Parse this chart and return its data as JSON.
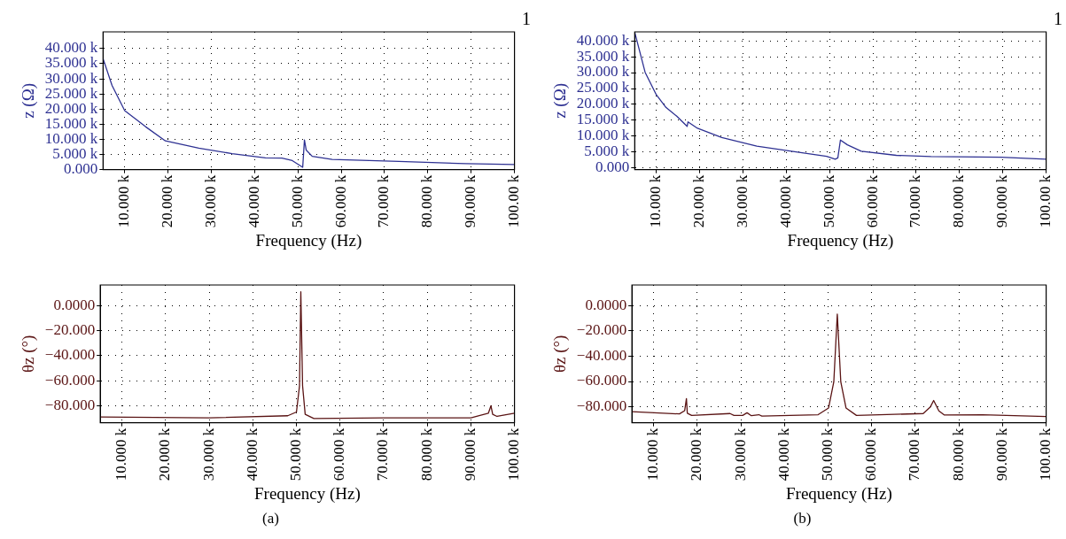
{
  "chart_data": [
    {
      "type": "line",
      "ylabel": "z (Ω)",
      "xlabel": "Frequency (Hz)",
      "annotations": [
        "1"
      ],
      "grid": true,
      "xlim": [
        5000,
        100000
      ],
      "xticks": [
        {
          "value": 10000,
          "label": "10.000 k"
        },
        {
          "value": 20000,
          "label": "20.000 k"
        },
        {
          "value": 30000,
          "label": "30.000 k"
        },
        {
          "value": 40000,
          "label": "40.000 k"
        },
        {
          "value": 50000,
          "label": "50.000 k"
        },
        {
          "value": 60000,
          "label": "60.000 k"
        },
        {
          "value": 70000,
          "label": "70.000 k"
        },
        {
          "value": 80000,
          "label": "80.000 k"
        },
        {
          "value": 90000,
          "label": "90.000 k"
        },
        {
          "value": 100000,
          "label": "100.00 k"
        }
      ],
      "ylim": [
        0,
        45500
      ],
      "yticks": [
        {
          "value": 0,
          "label": "0.000"
        },
        {
          "value": 5000,
          "label": "5.000 k"
        },
        {
          "value": 10000,
          "label": "10.000 k"
        },
        {
          "value": 15000,
          "label": "15.000 k"
        },
        {
          "value": 20000,
          "label": "20.000 k"
        },
        {
          "value": 25000,
          "label": "25.000 k"
        },
        {
          "value": 30000,
          "label": "30.000 k"
        },
        {
          "value": 35000,
          "label": "35.000 k"
        },
        {
          "value": 40000,
          "label": "40.000 k"
        }
      ],
      "x": [
        5000,
        7070,
        10000,
        14800,
        19400,
        27100,
        34800,
        42500,
        46300,
        48700,
        51100,
        51500,
        51900,
        53300,
        57900,
        73300,
        88700,
        100000
      ],
      "series": [
        {
          "color": "#2e3192",
          "values": [
            36700,
            27800,
            19500,
            14200,
            9500,
            7100,
            5300,
            3900,
            3800,
            3000,
            800,
            9800,
            6500,
            4400,
            3400,
            2700,
            2000,
            1700
          ]
        }
      ]
    },
    {
      "type": "line",
      "ylabel": "θz (°)",
      "xlabel": "Frequency (Hz)",
      "annotations": [
        "(a)"
      ],
      "grid": true,
      "xlim": [
        5000,
        100000
      ],
      "xticks": [
        {
          "value": 10000,
          "label": "10.000 k"
        },
        {
          "value": 20000,
          "label": "20.000 k"
        },
        {
          "value": 30000,
          "label": "30.000 k"
        },
        {
          "value": 40000,
          "label": "40.000 k"
        },
        {
          "value": 50000,
          "label": "50.000 k"
        },
        {
          "value": 60000,
          "label": "60.000 k"
        },
        {
          "value": 70000,
          "label": "70.000 k"
        },
        {
          "value": 80000,
          "label": "80.000 k"
        },
        {
          "value": 90000,
          "label": "90.000 k"
        },
        {
          "value": 100000,
          "label": "100.00 k"
        }
      ],
      "ylim": [
        -93.6,
        16.4
      ],
      "yticks": [
        {
          "value": -80,
          "label": "−80.000"
        },
        {
          "value": -60,
          "label": "−60.000"
        },
        {
          "value": -40,
          "label": "−40.000"
        },
        {
          "value": -20,
          "label": "−20.000"
        },
        {
          "value": 0,
          "label": "0.0000"
        }
      ],
      "x": [
        5000,
        30000,
        48000,
        50000,
        50700,
        51000,
        51400,
        52000,
        54000,
        70000,
        90000,
        94000,
        94600,
        95000,
        96000,
        100000
      ],
      "series": [
        {
          "color": "#5a1414",
          "values": [
            -89,
            -89.6,
            -88,
            -85,
            -64,
            11,
            -64,
            -86.8,
            -90.2,
            -89.6,
            -89.6,
            -86,
            -80,
            -86.8,
            -88.5,
            -86
          ]
        }
      ]
    },
    {
      "type": "line",
      "ylabel": "z (Ω)",
      "xlabel": "Frequency (Hz)",
      "annotations": [
        "1"
      ],
      "grid": true,
      "xlim": [
        5000,
        100000
      ],
      "xticks": [
        {
          "value": 10000,
          "label": "10.000 k"
        },
        {
          "value": 20000,
          "label": "20.000 k"
        },
        {
          "value": 30000,
          "label": "30.000 k"
        },
        {
          "value": 40000,
          "label": "40.000 k"
        },
        {
          "value": 50000,
          "label": "50.000 k"
        },
        {
          "value": 60000,
          "label": "60.000 k"
        },
        {
          "value": 70000,
          "label": "70.000 k"
        },
        {
          "value": 80000,
          "label": "80.000 k"
        },
        {
          "value": 90000,
          "label": "90.000 k"
        },
        {
          "value": 100000,
          "label": "100.00 k"
        }
      ],
      "ylim": [
        -500,
        42800
      ],
      "yticks": [
        {
          "value": 0,
          "label": "0.000"
        },
        {
          "value": 5000,
          "label": "5.000 k"
        },
        {
          "value": 10000,
          "label": "10.000 k"
        },
        {
          "value": 15000,
          "label": "15.000 k"
        },
        {
          "value": 20000,
          "label": "20.000 k"
        },
        {
          "value": 25000,
          "label": "25.000 k"
        },
        {
          "value": 30000,
          "label": "30.000 k"
        },
        {
          "value": 35000,
          "label": "35.000 k"
        },
        {
          "value": 40000,
          "label": "40.000 k"
        }
      ],
      "x": [
        5000,
        7400,
        10000,
        12250,
        14700,
        17100,
        17300,
        19500,
        25100,
        33200,
        41200,
        49300,
        51300,
        51900,
        52500,
        54100,
        57300,
        65400,
        73400,
        89500,
        100000
      ],
      "series": [
        {
          "color": "#2e3192",
          "values": [
            42700,
            30100,
            23000,
            19000,
            16300,
            13100,
            14500,
            12500,
            9600,
            6900,
            5300,
            3700,
            2800,
            3200,
            8800,
            7300,
            5300,
            4000,
            3600,
            3400,
            2800
          ]
        }
      ]
    },
    {
      "type": "line",
      "ylabel": "θz (°)",
      "xlabel": "Frequency (Hz)",
      "annotations": [
        "(b)"
      ],
      "grid": true,
      "xlim": [
        5000,
        100000
      ],
      "xticks": [
        {
          "value": 10000,
          "label": "10.000 k"
        },
        {
          "value": 20000,
          "label": "20.000 k"
        },
        {
          "value": 30000,
          "label": "30.000 k"
        },
        {
          "value": 40000,
          "label": "40.000 k"
        },
        {
          "value": 50000,
          "label": "50.000 k"
        },
        {
          "value": 60000,
          "label": "60.000 k"
        },
        {
          "value": 70000,
          "label": "70.000 k"
        },
        {
          "value": 80000,
          "label": "80.000 k"
        },
        {
          "value": 90000,
          "label": "90.000 k"
        },
        {
          "value": 100000,
          "label": "100.00 k"
        }
      ],
      "ylim": [
        -92.6,
        16.1
      ],
      "yticks": [
        {
          "value": -80,
          "label": "−80.000"
        },
        {
          "value": -60,
          "label": "−60.000"
        },
        {
          "value": -40,
          "label": "−40.000"
        },
        {
          "value": -20,
          "label": "−20.000"
        },
        {
          "value": 0,
          "label": "0.0000"
        }
      ],
      "x": [
        5000,
        15900,
        17100,
        17500,
        17700,
        18700,
        27500,
        28400,
        30400,
        31400,
        32400,
        34100,
        34800,
        47700,
        50100,
        51300,
        52100,
        52900,
        54100,
        56500,
        71800,
        73400,
        74200,
        75400,
        76600,
        85400,
        100000
      ],
      "series": [
        {
          "color": "#5a1414",
          "values": [
            -83.8,
            -85.6,
            -83,
            -73.5,
            -85,
            -86.8,
            -85.3,
            -86.8,
            -86.8,
            -84.7,
            -87,
            -86.2,
            -87.3,
            -86.2,
            -80.9,
            -60.3,
            -6.8,
            -60.3,
            -80.9,
            -86.8,
            -85.3,
            -80.3,
            -75,
            -83.2,
            -86.4,
            -86.2,
            -87.6
          ]
        }
      ]
    }
  ]
}
